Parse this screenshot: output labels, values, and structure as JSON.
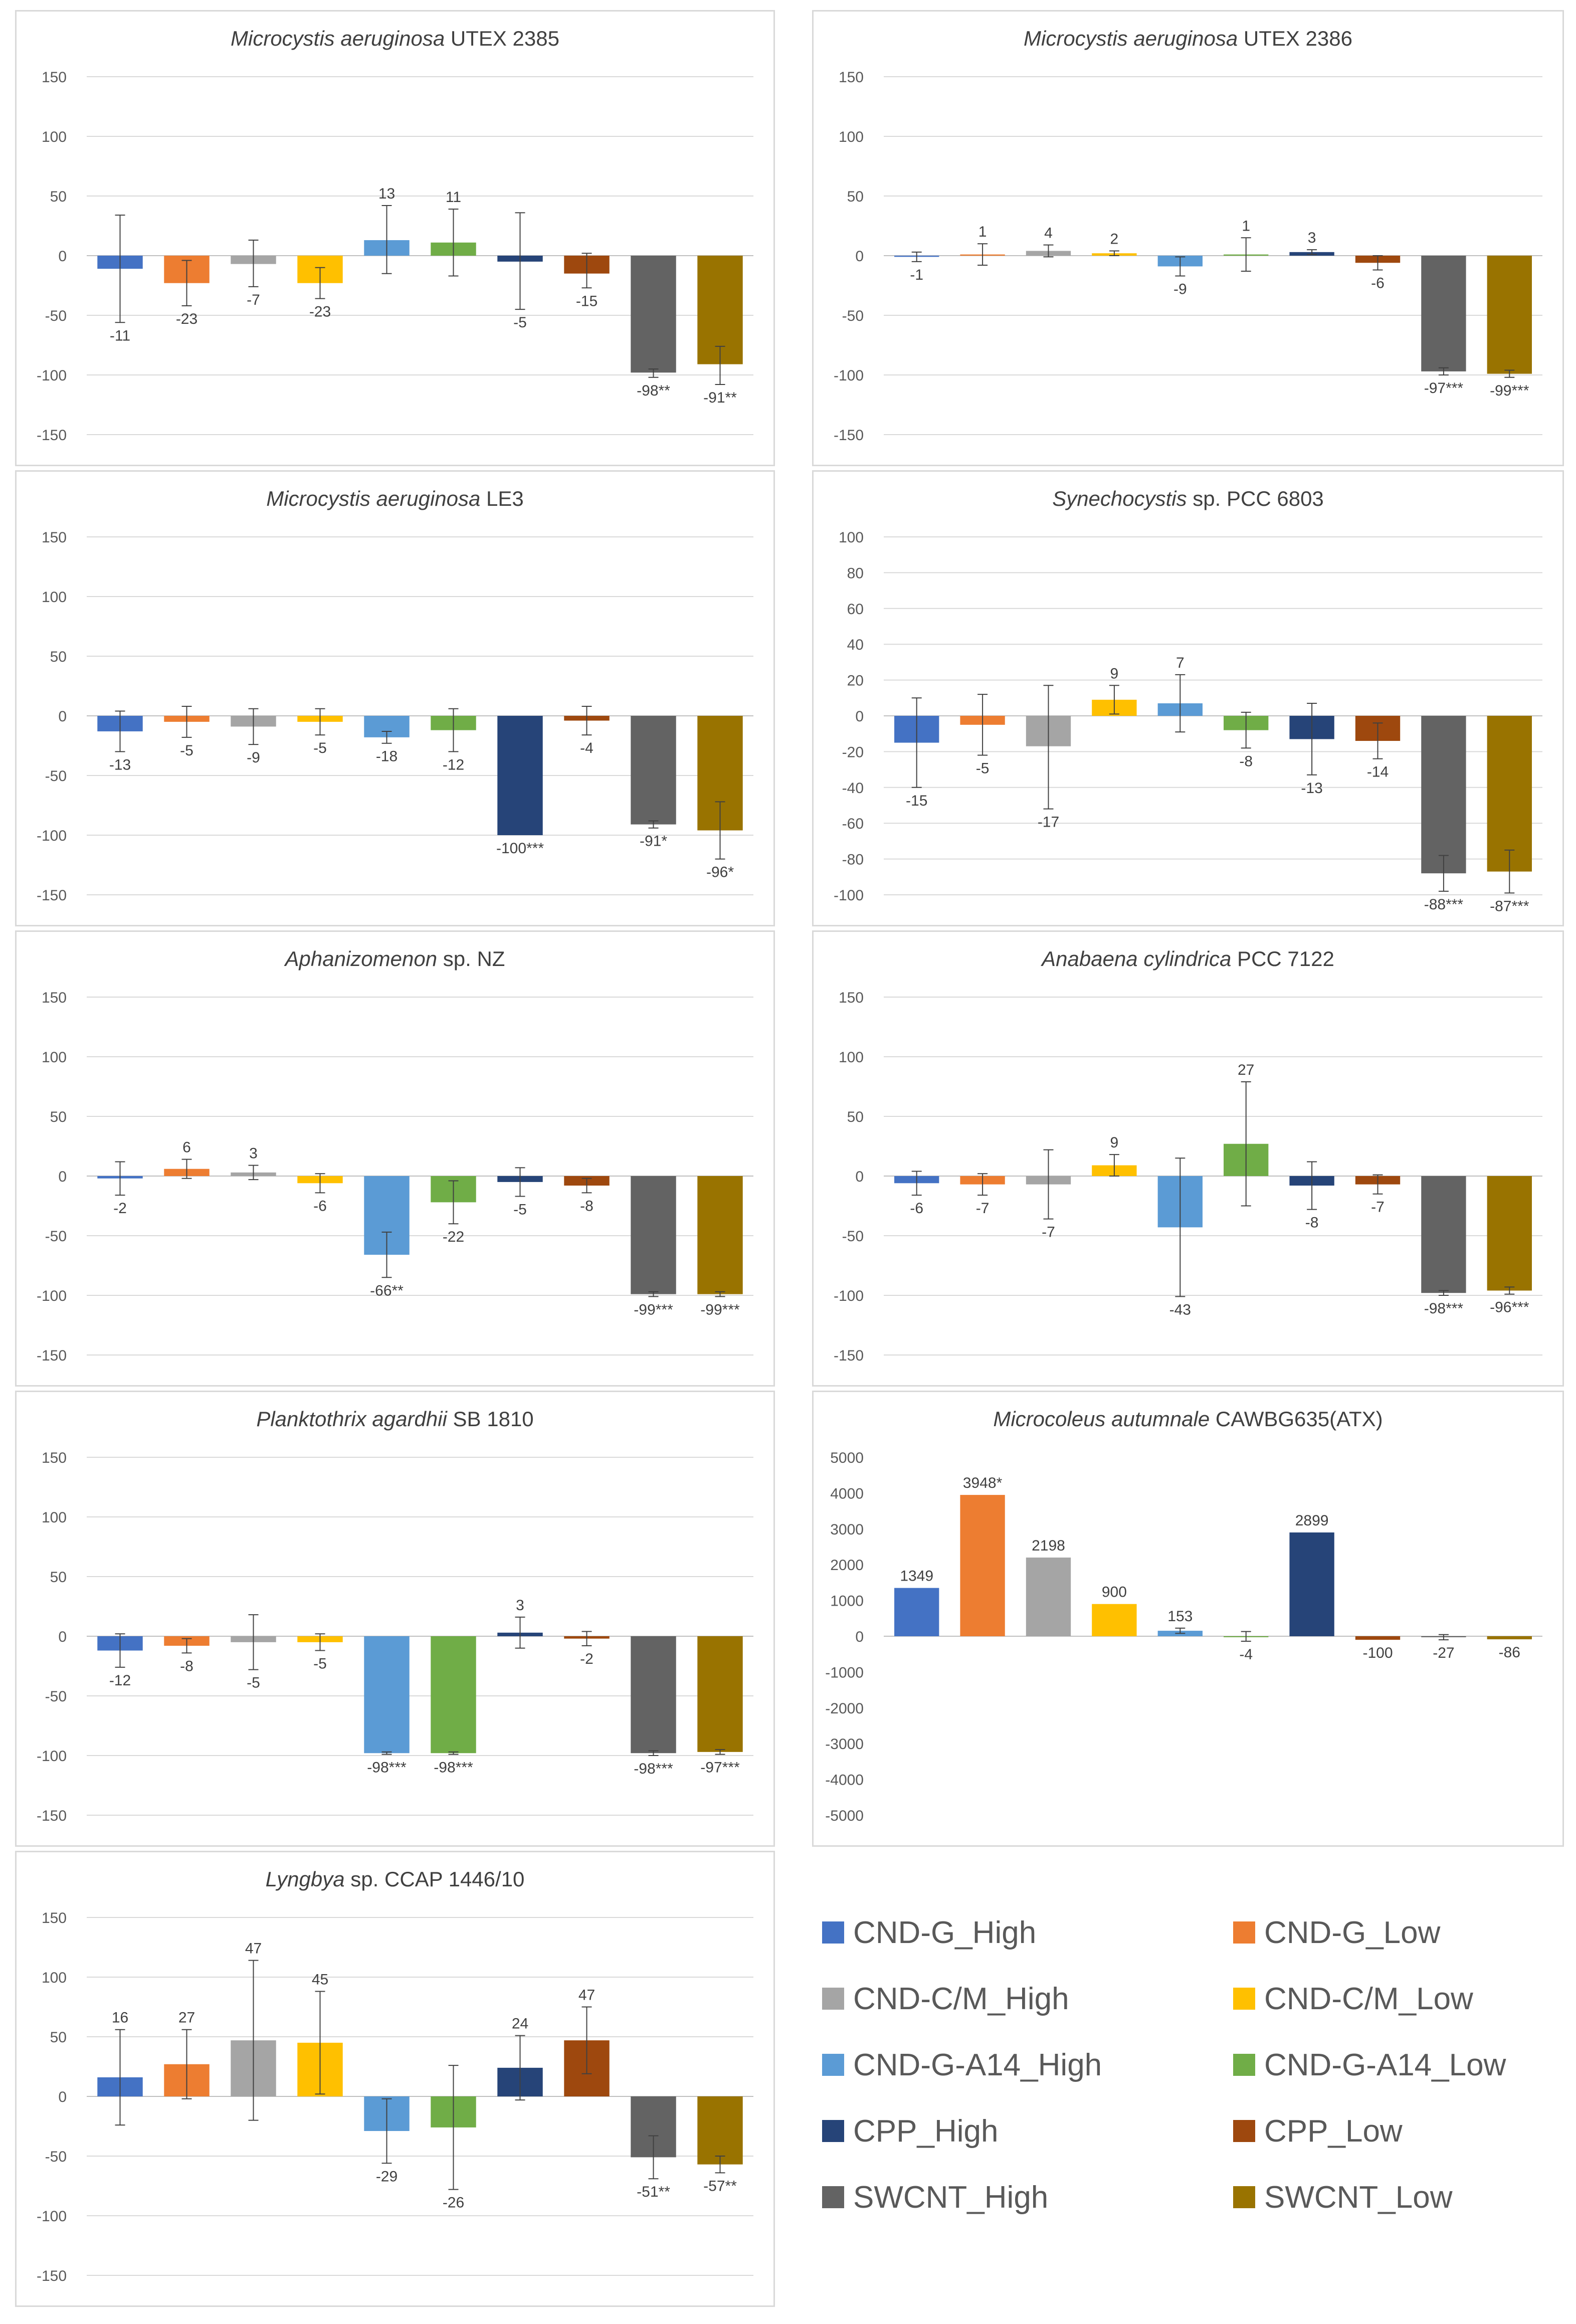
{
  "colors": {
    "CND-G_High": "#4472c4",
    "CND-G_Low": "#ed7d31",
    "CND-C/M_High": "#a5a5a5",
    "CND-C/M_Low": "#ffc000",
    "CND-G-A14_High": "#5b9bd5",
    "CND-G-A14_Low": "#70ad47",
    "CPP_High": "#264478",
    "CPP_Low": "#9e480e",
    "SWCNT_High": "#636363",
    "SWCNT_Low": "#997300"
  },
  "legend": {
    "items": [
      {
        "label": "CND-G_High",
        "color": "#4472c4"
      },
      {
        "label": "CND-G_Low",
        "color": "#ed7d31"
      },
      {
        "label": "CND-C/M_High",
        "color": "#a5a5a5"
      },
      {
        "label": "CND-C/M_Low",
        "color": "#ffc000"
      },
      {
        "label": "CND-G-A14_High",
        "color": "#5b9bd5"
      },
      {
        "label": "CND-G-A14_Low",
        "color": "#70ad47"
      },
      {
        "label": "CPP_High",
        "color": "#264478"
      },
      {
        "label": "CPP_Low",
        "color": "#9e480e"
      },
      {
        "label": "SWCNT_High",
        "color": "#636363"
      },
      {
        "label": "SWCNT_Low",
        "color": "#997300"
      }
    ]
  },
  "chart_data": [
    {
      "type": "bar",
      "title_italic": "Microcystis aeruginosa",
      "title_rest": " UTEX 2385",
      "categories": [
        "CND-G_High",
        "CND-G_Low",
        "CND-C/M_High",
        "CND-C/M_Low",
        "CND-G-A14_High",
        "CND-G-A14_Low",
        "CPP_High",
        "CPP_Low",
        "SWCNT_High",
        "SWCNT_Low"
      ],
      "values": [
        -11,
        -23,
        -7,
        -23,
        13,
        11,
        -5,
        -15,
        -98,
        -91
      ],
      "labels": [
        "-11",
        "-23",
        "-7",
        "-23",
        "13",
        "11",
        "-5",
        "-15",
        "-98**",
        "-91**"
      ],
      "error_low": [
        -56,
        -42,
        -26,
        -36,
        -15,
        -17,
        -45,
        -27,
        -102,
        -108
      ],
      "error_high": [
        34,
        -4,
        13,
        -10,
        42,
        39,
        36,
        2,
        -95,
        -76
      ],
      "ylim": [
        -150,
        150
      ],
      "yticks": [
        "-150",
        "-100",
        "-50",
        "0",
        "50",
        "100",
        "150"
      ],
      "grid": true
    },
    {
      "type": "bar",
      "title_italic": "Microcystis aeruginosa",
      "title_rest": " UTEX 2386",
      "categories": [
        "CND-G_High",
        "CND-G_Low",
        "CND-C/M_High",
        "CND-C/M_Low",
        "CND-G-A14_High",
        "CND-G-A14_Low",
        "CPP_High",
        "CPP_Low",
        "SWCNT_High",
        "SWCNT_Low"
      ],
      "values": [
        -1,
        1,
        4,
        2,
        -9,
        1,
        3,
        -6,
        -97,
        -99
      ],
      "labels": [
        "-1",
        "1",
        "4",
        "2",
        "-9",
        "1",
        "3",
        "-6",
        "-97***",
        "-99***"
      ],
      "error_low": [
        -5,
        -8,
        -1,
        0,
        -17,
        -13,
        1,
        -12,
        -100,
        -102
      ],
      "error_high": [
        3,
        10,
        9,
        4,
        -1,
        15,
        5,
        0,
        -94,
        -96
      ],
      "ylim": [
        -150,
        150
      ],
      "yticks": [
        "-150",
        "-100",
        "-50",
        "0",
        "50",
        "100",
        "150"
      ],
      "grid": true
    },
    {
      "type": "bar",
      "title_italic": "Microcystis aeruginosa",
      "title_rest": " LE3",
      "categories": [
        "CND-G_High",
        "CND-G_Low",
        "CND-C/M_High",
        "CND-C/M_Low",
        "CND-G-A14_High",
        "CND-G-A14_Low",
        "CPP_High",
        "CPP_Low",
        "SWCNT_High",
        "SWCNT_Low"
      ],
      "values": [
        -13,
        -5,
        -9,
        -5,
        -18,
        -12,
        -100,
        -4,
        -91,
        -96
      ],
      "labels": [
        "-13",
        "-5",
        "-9",
        "-5",
        "-18",
        "-12",
        "-100***",
        "-4",
        "-91*",
        "-96*"
      ],
      "error_low": [
        -30,
        -18,
        -24,
        -16,
        -23,
        -30,
        -100,
        -16,
        -94,
        -120
      ],
      "error_high": [
        4,
        8,
        6,
        6,
        -13,
        6,
        -100,
        8,
        -88,
        -72
      ],
      "ylim": [
        -150,
        150
      ],
      "yticks": [
        "-150",
        "-100",
        "-50",
        "0",
        "50",
        "100",
        "150"
      ],
      "grid": true
    },
    {
      "type": "bar",
      "title_italic": "Synechocystis",
      "title_rest": " sp. PCC 6803",
      "categories": [
        "CND-G_High",
        "CND-G_Low",
        "CND-C/M_High",
        "CND-C/M_Low",
        "CND-G-A14_High",
        "CND-G-A14_Low",
        "CPP_High",
        "CPP_Low",
        "SWCNT_High",
        "SWCNT_Low"
      ],
      "values": [
        -15,
        -5,
        -17,
        9,
        7,
        -8,
        -13,
        -14,
        -88,
        -87
      ],
      "labels": [
        "-15",
        "-5",
        "-17",
        "9",
        "7",
        "-8",
        "-13",
        "-14",
        "-88***",
        "-87***"
      ],
      "error_low": [
        -40,
        -22,
        -52,
        1,
        -9,
        -18,
        -33,
        -24,
        -98,
        -99
      ],
      "error_high": [
        10,
        12,
        17,
        17,
        23,
        2,
        7,
        -4,
        -78,
        -75
      ],
      "ylim": [
        -100,
        100
      ],
      "yticks": [
        "-100",
        "-80",
        "-60",
        "-40",
        "-20",
        "0",
        "20",
        "40",
        "60",
        "80",
        "100"
      ],
      "grid": true
    },
    {
      "type": "bar",
      "title_italic": "Aphanizomenon",
      "title_rest": " sp. NZ",
      "categories": [
        "CND-G_High",
        "CND-G_Low",
        "CND-C/M_High",
        "CND-C/M_Low",
        "CND-G-A14_High",
        "CND-G-A14_Low",
        "CPP_High",
        "CPP_Low",
        "SWCNT_High",
        "SWCNT_Low"
      ],
      "values": [
        -2,
        6,
        3,
        -6,
        -66,
        -22,
        -5,
        -8,
        -99,
        -99
      ],
      "labels": [
        "-2",
        "6",
        "3",
        "-6",
        "-66**",
        "-22",
        "-5",
        "-8",
        "-99***",
        "-99***"
      ],
      "error_low": [
        -16,
        -2,
        -3,
        -14,
        -85,
        -40,
        -17,
        -14,
        -101,
        -101
      ],
      "error_high": [
        12,
        14,
        9,
        2,
        -47,
        -4,
        7,
        -2,
        -97,
        -97
      ],
      "ylim": [
        -150,
        150
      ],
      "yticks": [
        "-150",
        "-100",
        "-50",
        "0",
        "50",
        "100",
        "150"
      ],
      "grid": true
    },
    {
      "type": "bar",
      "title_italic": "Anabaena cylindrica",
      "title_rest": " PCC 7122",
      "categories": [
        "CND-G_High",
        "CND-G_Low",
        "CND-C/M_High",
        "CND-C/M_Low",
        "CND-G-A14_High",
        "CND-G-A14_Low",
        "CPP_High",
        "CPP_Low",
        "SWCNT_High",
        "SWCNT_Low"
      ],
      "values": [
        -6,
        -7,
        -7,
        9,
        -43,
        27,
        -8,
        -7,
        -98,
        -96
      ],
      "labels": [
        "-6",
        "-7",
        "-7",
        "9",
        "-43",
        "27",
        "-8",
        "-7",
        "-98***",
        "-96***"
      ],
      "error_low": [
        -16,
        -16,
        -36,
        0,
        -101,
        -25,
        -28,
        -15,
        -100,
        -99
      ],
      "error_high": [
        4,
        2,
        22,
        18,
        15,
        79,
        12,
        1,
        -96,
        -93
      ],
      "ylim": [
        -150,
        150
      ],
      "yticks": [
        "-150",
        "-100",
        "-50",
        "0",
        "50",
        "100",
        "150"
      ],
      "grid": true
    },
    {
      "type": "bar",
      "title_italic": "Planktothrix agardhii",
      "title_rest": " SB 1810",
      "categories": [
        "CND-G_High",
        "CND-G_Low",
        "CND-C/M_High",
        "CND-C/M_Low",
        "CND-G-A14_High",
        "CND-G-A14_Low",
        "CPP_High",
        "CPP_Low",
        "SWCNT_High",
        "SWCNT_Low"
      ],
      "values": [
        -12,
        -8,
        -5,
        -5,
        -98,
        -98,
        3,
        -2,
        -98,
        -97
      ],
      "labels": [
        "-12",
        "-8",
        "-5",
        "-5",
        "-98***",
        "-98***",
        "3",
        "-2",
        "-98***",
        "-97***"
      ],
      "error_low": [
        -26,
        -14,
        -28,
        -12,
        -99,
        -99,
        -10,
        -8,
        -100,
        -99
      ],
      "error_high": [
        2,
        -2,
        18,
        2,
        -97,
        -97,
        16,
        4,
        -96,
        -95
      ],
      "ylim": [
        -150,
        150
      ],
      "yticks": [
        "-150",
        "-100",
        "-50",
        "0",
        "50",
        "100",
        "150"
      ],
      "grid": true
    },
    {
      "type": "bar",
      "title_italic": "Microcoleus autumnale",
      "title_rest": " CAWBG635(ATX)",
      "categories": [
        "CND-G_High",
        "CND-G_Low",
        "CND-C/M_High",
        "CND-C/M_Low",
        "CND-G-A14_High",
        "CND-G-A14_Low",
        "CPP_High",
        "CPP_Low",
        "SWCNT_High",
        "SWCNT_Low"
      ],
      "values": [
        1349,
        3948,
        2198,
        900,
        153,
        -4,
        2899,
        -100,
        -27,
        -86
      ],
      "labels": [
        "1349",
        "3948*",
        "2198",
        "900",
        "153",
        "-4",
        "2899",
        "-100",
        "-27",
        "-86"
      ],
      "error_low": [
        1349,
        3948,
        2198,
        900,
        80,
        -140,
        2899,
        -100,
        -100,
        -86
      ],
      "error_high": [
        1349,
        3948,
        2198,
        900,
        226,
        132,
        2899,
        -100,
        46,
        -86
      ],
      "ylim": [
        -5000,
        5000
      ],
      "yticks": [
        "-5000",
        "-4000",
        "-3000",
        "-2000",
        "-1000",
        "0",
        "1000",
        "2000",
        "3000",
        "4000",
        "5000"
      ],
      "grid": false
    },
    {
      "type": "bar",
      "title_italic": "Lyngbya",
      "title_rest": " sp. CCAP 1446/10",
      "categories": [
        "CND-G_High",
        "CND-G_Low",
        "CND-C/M_High",
        "CND-C/M_Low",
        "CND-G-A14_High",
        "CND-G-A14_Low",
        "CPP_High",
        "CPP_Low",
        "SWCNT_High",
        "SWCNT_Low"
      ],
      "values": [
        16,
        27,
        47,
        45,
        -29,
        -26,
        24,
        47,
        -51,
        -57
      ],
      "labels": [
        "16",
        "27",
        "47",
        "45",
        "-29",
        "-26",
        "24",
        "47",
        "-51**",
        "-57**"
      ],
      "error_low": [
        -24,
        -2,
        -20,
        2,
        -56,
        -78,
        -3,
        19,
        -69,
        -64
      ],
      "error_high": [
        56,
        56,
        114,
        88,
        -2,
        26,
        51,
        75,
        -33,
        -50
      ],
      "ylim": [
        -150,
        150
      ],
      "yticks": [
        "-150",
        "-100",
        "-50",
        "0",
        "50",
        "100",
        "150"
      ],
      "grid": true
    }
  ]
}
